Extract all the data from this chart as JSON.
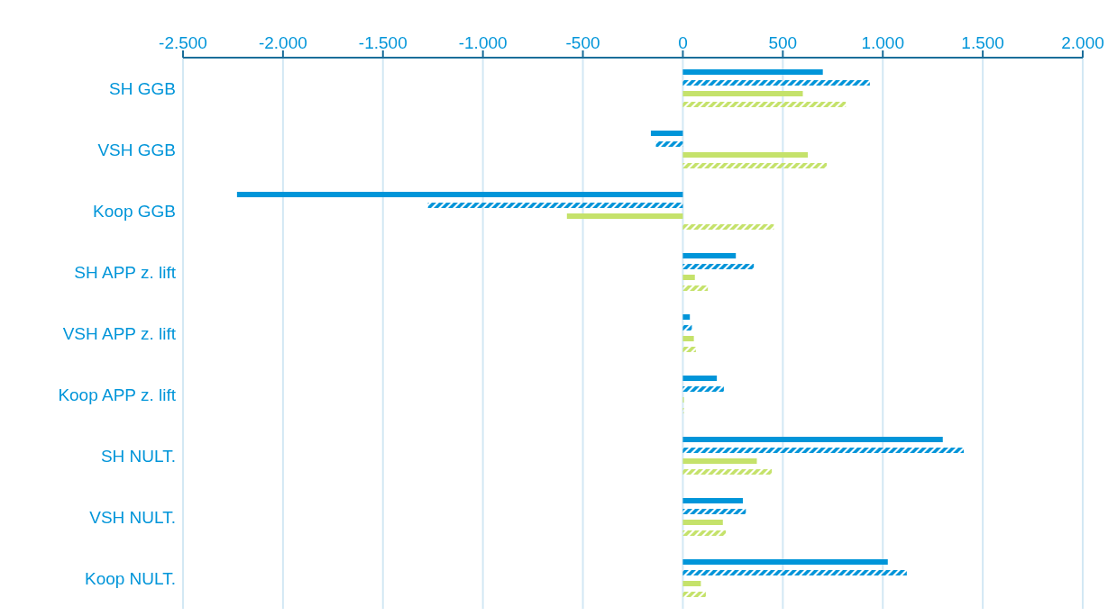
{
  "chart_data": {
    "type": "bar",
    "orientation": "horizontal",
    "categories": [
      "SH GGB",
      "VSH GGB",
      "Koop GGB",
      "SH APP z. lift",
      "VSH APP z. lift",
      "Koop APP z. lift",
      "SH NULT.",
      "VSH NULT.",
      "Koop NULT."
    ],
    "series": [
      {
        "color": "#0095d9",
        "values": [
          700,
          -160,
          -2230,
          265,
          35,
          170,
          1300,
          300,
          1025
        ]
      },
      {
        "color": "#0095d9",
        "values": [
          935,
          -135,
          -1275,
          355,
          45,
          205,
          1405,
          315,
          1120
        ]
      },
      {
        "color": "#c5e26b",
        "values": [
          600,
          625,
          -580,
          60,
          55,
          5,
          370,
          200,
          90
        ]
      },
      {
        "color": "#c5e26b",
        "values": [
          815,
          720,
          455,
          125,
          65,
          5,
          445,
          215,
          115
        ]
      }
    ],
    "xlim": [
      -2500,
      2000
    ],
    "xticks": [
      {
        "value": -2500,
        "label": "-2.500"
      },
      {
        "value": -2000,
        "label": "-2.000"
      },
      {
        "value": -1500,
        "label": "-1.500"
      },
      {
        "value": -1000,
        "label": "-1.000"
      },
      {
        "value": -500,
        "label": "-500"
      },
      {
        "value": 0,
        "label": "0"
      },
      {
        "value": 500,
        "label": "500"
      },
      {
        "value": 1000,
        "label": "1.000"
      },
      {
        "value": 1500,
        "label": "1.500"
      },
      {
        "value": 2000,
        "label": "2.000"
      }
    ],
    "grid": "x",
    "legend": false
  }
}
